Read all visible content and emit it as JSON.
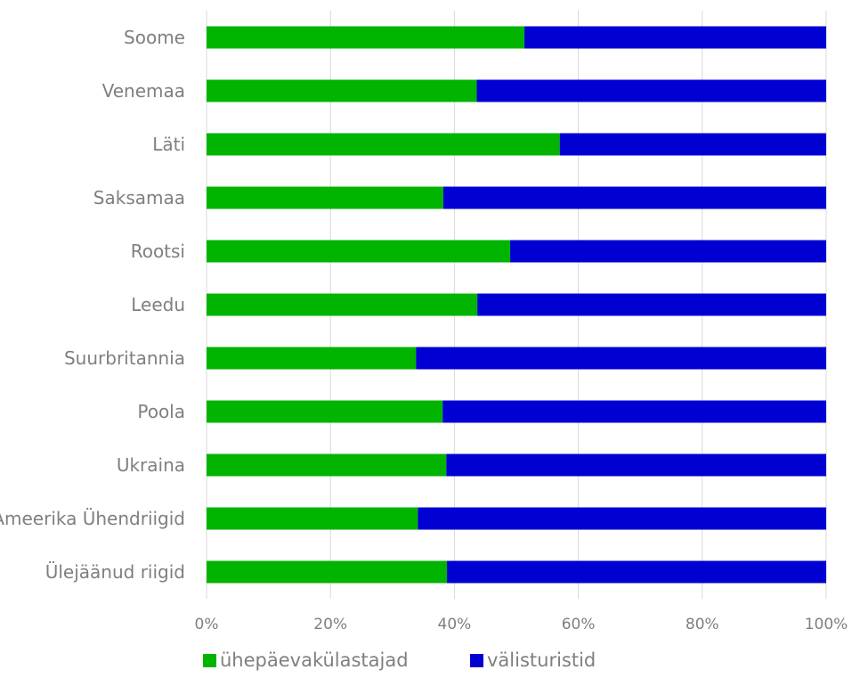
{
  "chart_data": {
    "type": "bar",
    "orientation": "horizontal",
    "stacked": "percent",
    "categories": [
      "Soome",
      "Venemaa",
      "Läti",
      "Saksamaa",
      "Rootsi",
      "Leedu",
      "Suurbritannia",
      "Poola",
      "Ukraina",
      "Ameerika Ühendriigid",
      "Ülejäänud riigid"
    ],
    "series": [
      {
        "name": "ühepäevakülastajad",
        "color": "#00b400",
        "values": [
          51.3,
          43.6,
          57.0,
          38.2,
          49.0,
          43.7,
          33.8,
          38.1,
          38.7,
          34.1,
          38.8
        ]
      },
      {
        "name": "välisturistid",
        "color": "#0000d2",
        "values": [
          48.7,
          56.4,
          43.0,
          61.8,
          51.0,
          56.3,
          66.2,
          61.9,
          61.3,
          65.9,
          61.2
        ]
      }
    ],
    "xlim": [
      0,
      100
    ],
    "xticks": [
      "0%",
      "20%",
      "40%",
      "60%",
      "80%",
      "100%"
    ],
    "grid": true,
    "legend_position": "bottom"
  }
}
